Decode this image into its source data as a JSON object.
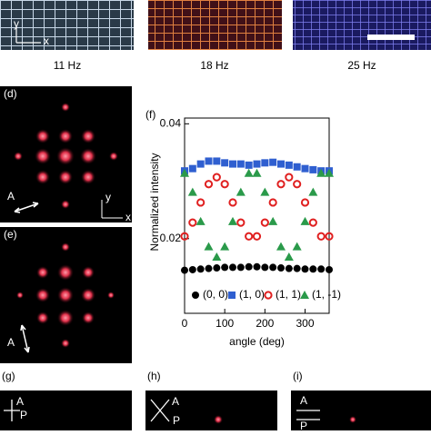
{
  "chart_data": {
    "type": "scatter",
    "xlabel": "angle (deg)",
    "ylabel": "Normalized intensity",
    "panel": "(f)",
    "x": [
      0,
      20,
      40,
      60,
      80,
      100,
      120,
      140,
      160,
      180,
      200,
      220,
      240,
      260,
      280,
      300,
      320,
      340,
      360
    ],
    "series": [
      {
        "name": "(0, 0)",
        "color": "#000000",
        "marker": "circle",
        "values": [
          0.0145,
          0.0146,
          0.0147,
          0.0148,
          0.0149,
          0.015,
          0.015,
          0.015,
          0.0151,
          0.0151,
          0.015,
          0.015,
          0.0149,
          0.0148,
          0.0148,
          0.0147,
          0.0147,
          0.0147,
          0.0146
        ]
      },
      {
        "name": "(1, 0)",
        "color": "#2f5fd0",
        "marker": "square",
        "values": [
          0.0318,
          0.0322,
          0.033,
          0.0335,
          0.0335,
          0.0332,
          0.033,
          0.033,
          0.0328,
          0.033,
          0.0332,
          0.0333,
          0.033,
          0.0328,
          0.0325,
          0.0322,
          0.032,
          0.0318,
          0.0318
        ]
      },
      {
        "name": "(1, 1)",
        "color": "#e02020",
        "marker": "ring",
        "values": [
          0.0204,
          0.0228,
          0.0263,
          0.0295,
          0.0307,
          0.0295,
          0.0263,
          0.0228,
          0.0204,
          0.0204,
          0.0228,
          0.0263,
          0.0295,
          0.0307,
          0.0295,
          0.0263,
          0.0228,
          0.0204,
          0.0204
        ]
      },
      {
        "name": "(1, -1)",
        "color": "#2a9a4a",
        "marker": "triangle",
        "values": [
          0.0314,
          0.0281,
          0.023,
          0.0186,
          0.0168,
          0.0186,
          0.023,
          0.0281,
          0.0314,
          0.0314,
          0.0281,
          0.023,
          0.0186,
          0.0168,
          0.0186,
          0.023,
          0.0281,
          0.0314,
          0.0314
        ]
      }
    ],
    "xlim": [
      0,
      360
    ],
    "xticks": [
      0,
      100,
      200,
      300
    ],
    "ylim": [
      0.007,
      0.041
    ],
    "yticks": [
      {
        "value": 0.02,
        "label": "0.02"
      },
      {
        "value": 0.04,
        "label": "0.04"
      }
    ]
  },
  "panels": {
    "freqs": [
      "11 Hz",
      "18 Hz",
      "25 Hz"
    ],
    "d": "(d)",
    "e": "(e)",
    "g": "(g)",
    "h": "(h)",
    "i": "(i)",
    "analyzer": "A",
    "polarizer": "P",
    "x": "x",
    "y": "y"
  }
}
